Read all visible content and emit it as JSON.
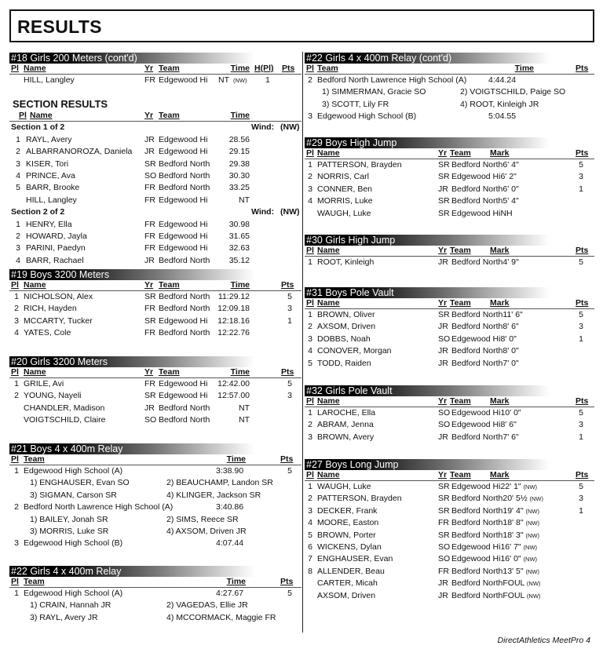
{
  "page_title": "RESULTS",
  "footer": "DirectAthletics MeetPro 4",
  "left": [
    {
      "type": "indiv",
      "title": "#18 Girls 200 Meters (cont'd)",
      "headers": {
        "pl": "Pl",
        "name": "Name",
        "yr": "Yr",
        "team": "Team",
        "time": "Time",
        "h": "H(Pl)",
        "pts": "Pts"
      },
      "rows": [
        {
          "pl": "",
          "name": "HILL, Langley",
          "yr": "FR",
          "team": "Edgewood Hi",
          "time": "NT",
          "wind": "(NW)",
          "h": "1",
          "pts": ""
        }
      ],
      "section_results": {
        "title": "SECTION RESULTS",
        "headers": {
          "pl": "Pl",
          "name": "Name",
          "yr": "Yr",
          "team": "Team",
          "time": "Time"
        },
        "sections": [
          {
            "label": "Section 1 of 2",
            "wind_label": "Wind:",
            "wind": "(NW)",
            "rows": [
              {
                "pl": "1",
                "name": "RAYL, Avery",
                "yr": "JR",
                "team": "Edgewood Hi",
                "time": "28.56"
              },
              {
                "pl": "2",
                "name": "ALBARRANOROZA, Daniela",
                "yr": "JR",
                "team": "Edgewood Hi",
                "time": "29.15"
              },
              {
                "pl": "3",
                "name": "KISER, Tori",
                "yr": "SR",
                "team": "Bedford North",
                "time": "29.38"
              },
              {
                "pl": "4",
                "name": "PRINCE, Ava",
                "yr": "SO",
                "team": "Bedford North",
                "time": "30.30"
              },
              {
                "pl": "5",
                "name": "BARR, Brooke",
                "yr": "FR",
                "team": "Bedford North",
                "time": "33.25"
              },
              {
                "pl": "",
                "name": "HILL, Langley",
                "yr": "FR",
                "team": "Edgewood Hi",
                "time": "NT"
              }
            ]
          },
          {
            "label": "Section 2 of 2",
            "wind_label": "Wind:",
            "wind": "(NW)",
            "rows": [
              {
                "pl": "1",
                "name": "HENRY, Ella",
                "yr": "FR",
                "team": "Edgewood Hi",
                "time": "30.98"
              },
              {
                "pl": "2",
                "name": "HOWARD, Jayla",
                "yr": "FR",
                "team": "Edgewood Hi",
                "time": "31.65"
              },
              {
                "pl": "3",
                "name": "PARINI, Paedyn",
                "yr": "FR",
                "team": "Edgewood Hi",
                "time": "32.63"
              },
              {
                "pl": "4",
                "name": "BARR, Rachael",
                "yr": "JR",
                "team": "Bedford North",
                "time": "35.12"
              }
            ]
          }
        ]
      }
    },
    {
      "type": "indiv",
      "title": "#19 Boys 3200 Meters",
      "headers": {
        "pl": "Pl",
        "name": "Name",
        "yr": "Yr",
        "team": "Team",
        "time": "Time",
        "pts": "Pts"
      },
      "rows": [
        {
          "pl": "1",
          "name": "NICHOLSON, Alex",
          "yr": "SR",
          "team": "Bedford North",
          "time": "11:29.12",
          "pts": "5"
        },
        {
          "pl": "2",
          "name": "RICH, Hayden",
          "yr": "FR",
          "team": "Bedford North",
          "time": "12:09.18",
          "pts": "3"
        },
        {
          "pl": "3",
          "name": "MCCARTY, Tucker",
          "yr": "SR",
          "team": "Edgewood Hi",
          "time": "12:18.16",
          "pts": "1"
        },
        {
          "pl": "4",
          "name": "YATES, Cole",
          "yr": "FR",
          "team": "Bedford North",
          "time": "12:22.76",
          "pts": ""
        }
      ]
    },
    {
      "type": "indiv",
      "title": "#20 Girls 3200 Meters",
      "headers": {
        "pl": "Pl",
        "name": "Name",
        "yr": "Yr",
        "team": "Team",
        "time": "Time",
        "pts": "Pts"
      },
      "rows": [
        {
          "pl": "1",
          "name": "GRILE, Avi",
          "yr": "FR",
          "team": "Edgewood Hi",
          "time": "12:42.00",
          "pts": "5"
        },
        {
          "pl": "2",
          "name": "YOUNG, Nayeli",
          "yr": "SR",
          "team": "Edgewood Hi",
          "time": "12:57.00",
          "pts": "3"
        },
        {
          "pl": "",
          "name": "CHANDLER, Madison",
          "yr": "JR",
          "team": "Bedford North",
          "time": "NT",
          "pts": ""
        },
        {
          "pl": "",
          "name": "VOIGTSCHILD, Claire",
          "yr": "SO",
          "team": "Bedford North",
          "time": "NT",
          "pts": ""
        }
      ]
    },
    {
      "type": "relay",
      "title": "#21 Boys 4 x 400m Relay",
      "headers": {
        "pl": "Pl",
        "team": "Team",
        "time": "Time",
        "pts": "Pts"
      },
      "rows": [
        {
          "pl": "1",
          "team": "Edgewood High School (A)",
          "time": "3:38.90",
          "pts": "5",
          "legs": [
            "1) ENGHAUSER, Evan SO",
            "2) BEAUCHAMP, Landon SR",
            "3) SIGMAN, Carson SR",
            "4) KLINGER, Jackson SR"
          ]
        },
        {
          "pl": "2",
          "team": "Bedford North Lawrence High School (A)",
          "time": "3:40.86",
          "pts": "",
          "legs": [
            "1) BAILEY, Jonah SR",
            "2) SIMS, Reece SR",
            "3) MORRIS, Luke SR",
            "4) AXSOM, Driven JR"
          ]
        },
        {
          "pl": "3",
          "team": "Edgewood High School (B)",
          "time": "4:07.44",
          "pts": "",
          "legs": []
        }
      ]
    },
    {
      "type": "relay",
      "title": "#22 Girls 4 x 400m Relay",
      "headers": {
        "pl": "Pl",
        "team": "Team",
        "time": "Time",
        "pts": "Pts"
      },
      "rows": [
        {
          "pl": "1",
          "team": "Edgewood High School (A)",
          "time": "4:27.67",
          "pts": "5",
          "legs": [
            "1) CRAIN, Hannah JR",
            "2) VAGEDAS, Ellie JR",
            "3) RAYL, Avery JR",
            "4) MCCORMACK, Maggie FR"
          ]
        }
      ]
    }
  ],
  "right": [
    {
      "type": "relay",
      "title": "#22 Girls 4 x 400m Relay (cont'd)",
      "headers": {
        "pl": "Pl",
        "team": "Team",
        "time": "Time",
        "pts": "Pts"
      },
      "rows": [
        {
          "pl": "2",
          "team": "Bedford North Lawrence High School (A)",
          "time": "4:44.24",
          "pts": "",
          "legs": [
            "1) SIMMERMAN, Gracie SO",
            "2) VOIGTSCHILD, Paige SO",
            "3) SCOTT, Lily FR",
            "4) ROOT, Kinleigh JR"
          ]
        },
        {
          "pl": "3",
          "team": "Edgewood High School (B)",
          "time": "5:04.55",
          "pts": "",
          "legs": []
        }
      ]
    },
    {
      "type": "field",
      "title": "#29 Boys High Jump",
      "headers": {
        "pl": "Pl",
        "name": "Name",
        "yr": "Yr",
        "team": "Team",
        "mark": "Mark",
        "pts": "Pts"
      },
      "rows": [
        {
          "pl": "1",
          "name": "PATTERSON, Brayden",
          "yr": "SR",
          "team": "Bedford North",
          "mark": "6' 4\"",
          "wind": "",
          "pts": "5"
        },
        {
          "pl": "2",
          "name": "NORRIS, Carl",
          "yr": "SR",
          "team": "Edgewood Hi",
          "mark": "6' 2\"",
          "wind": "",
          "pts": "3"
        },
        {
          "pl": "3",
          "name": "CONNER, Ben",
          "yr": "JR",
          "team": "Bedford North",
          "mark": "6' 0\"",
          "wind": "",
          "pts": "1"
        },
        {
          "pl": "4",
          "name": "MORRIS, Luke",
          "yr": "SR",
          "team": "Bedford North",
          "mark": "5' 4\"",
          "wind": "",
          "pts": ""
        },
        {
          "pl": "",
          "name": "WAUGH, Luke",
          "yr": "SR",
          "team": "Edgewood Hi",
          "mark": "NH",
          "wind": "",
          "pts": ""
        }
      ]
    },
    {
      "type": "field",
      "title": "#30 Girls High Jump",
      "headers": {
        "pl": "Pl",
        "name": "Name",
        "yr": "Yr",
        "team": "Team",
        "mark": "Mark",
        "pts": "Pts"
      },
      "rows": [
        {
          "pl": "1",
          "name": "ROOT, Kinleigh",
          "yr": "JR",
          "team": "Bedford North",
          "mark": "4' 9\"",
          "wind": "",
          "pts": "5"
        }
      ]
    },
    {
      "type": "field",
      "title": "#31 Boys Pole Vault",
      "headers": {
        "pl": "Pl",
        "name": "Name",
        "yr": "Yr",
        "team": "Team",
        "mark": "Mark",
        "pts": "Pts"
      },
      "rows": [
        {
          "pl": "1",
          "name": "BROWN, Oliver",
          "yr": "SR",
          "team": "Bedford North",
          "mark": "11' 6\"",
          "wind": "",
          "pts": "5"
        },
        {
          "pl": "2",
          "name": "AXSOM, Driven",
          "yr": "JR",
          "team": "Bedford North",
          "mark": "8' 6\"",
          "wind": "",
          "pts": "3"
        },
        {
          "pl": "3",
          "name": "DOBBS, Noah",
          "yr": "SO",
          "team": "Edgewood Hi",
          "mark": "8' 0\"",
          "wind": "",
          "pts": "1"
        },
        {
          "pl": "4",
          "name": "CONOVER, Morgan",
          "yr": "JR",
          "team": "Bedford North",
          "mark": "8' 0\"",
          "wind": "",
          "pts": ""
        },
        {
          "pl": "5",
          "name": "TODD, Raiden",
          "yr": "JR",
          "team": "Bedford North",
          "mark": "7' 0\"",
          "wind": "",
          "pts": ""
        }
      ]
    },
    {
      "type": "field",
      "title": "#32 Girls Pole Vault",
      "headers": {
        "pl": "Pl",
        "name": "Name",
        "yr": "Yr",
        "team": "Team",
        "mark": "Mark",
        "pts": "Pts"
      },
      "rows": [
        {
          "pl": "1",
          "name": "LAROCHE, Ella",
          "yr": "SO",
          "team": "Edgewood Hi",
          "mark": "10' 0\"",
          "wind": "",
          "pts": "5"
        },
        {
          "pl": "2",
          "name": "ABRAM, Jenna",
          "yr": "SO",
          "team": "Edgewood Hi",
          "mark": "8' 6\"",
          "wind": "",
          "pts": "3"
        },
        {
          "pl": "3",
          "name": "BROWN, Avery",
          "yr": "JR",
          "team": "Bedford North",
          "mark": "7' 6\"",
          "wind": "",
          "pts": "1"
        }
      ]
    },
    {
      "type": "field",
      "title": "#27 Boys Long Jump",
      "headers": {
        "pl": "Pl",
        "name": "Name",
        "yr": "Yr",
        "team": "Team",
        "mark": "Mark",
        "pts": "Pts"
      },
      "rows": [
        {
          "pl": "1",
          "name": "WAUGH, Luke",
          "yr": "SR",
          "team": "Edgewood Hi",
          "mark": "22' 1\"",
          "wind": "(NW)",
          "pts": "5"
        },
        {
          "pl": "2",
          "name": "PATTERSON, Brayden",
          "yr": "SR",
          "team": "Bedford North",
          "mark": "20' 5½",
          "wind": "(NW)",
          "pts": "3"
        },
        {
          "pl": "3",
          "name": "DECKER, Frank",
          "yr": "SR",
          "team": "Bedford North",
          "mark": "19' 4\"",
          "wind": "(NW)",
          "pts": "1"
        },
        {
          "pl": "4",
          "name": "MOORE, Easton",
          "yr": "FR",
          "team": "Bedford North",
          "mark": "18' 8\"",
          "wind": "(NW)",
          "pts": ""
        },
        {
          "pl": "5",
          "name": "BROWN, Porter",
          "yr": "SR",
          "team": "Bedford North",
          "mark": "18' 3\"",
          "wind": "(NW)",
          "pts": ""
        },
        {
          "pl": "6",
          "name": "WICKENS, Dylan",
          "yr": "SO",
          "team": "Edgewood Hi",
          "mark": "16' 7\"",
          "wind": "(NW)",
          "pts": ""
        },
        {
          "pl": "7",
          "name": "ENGHAUSER, Evan",
          "yr": "SO",
          "team": "Edgewood Hi",
          "mark": "16' 0\"",
          "wind": "(NW)",
          "pts": ""
        },
        {
          "pl": "8",
          "name": "ALLENDER, Beau",
          "yr": "FR",
          "team": "Bedford North",
          "mark": "13' 5\"",
          "wind": "(NW)",
          "pts": ""
        },
        {
          "pl": "",
          "name": "CARTER, Micah",
          "yr": "JR",
          "team": "Bedford North",
          "mark": "FOUL",
          "wind": "(NW)",
          "pts": ""
        },
        {
          "pl": "",
          "name": "AXSOM, Driven",
          "yr": "JR",
          "team": "Bedford North",
          "mark": "FOUL",
          "wind": "(NW)",
          "pts": ""
        }
      ]
    }
  ]
}
